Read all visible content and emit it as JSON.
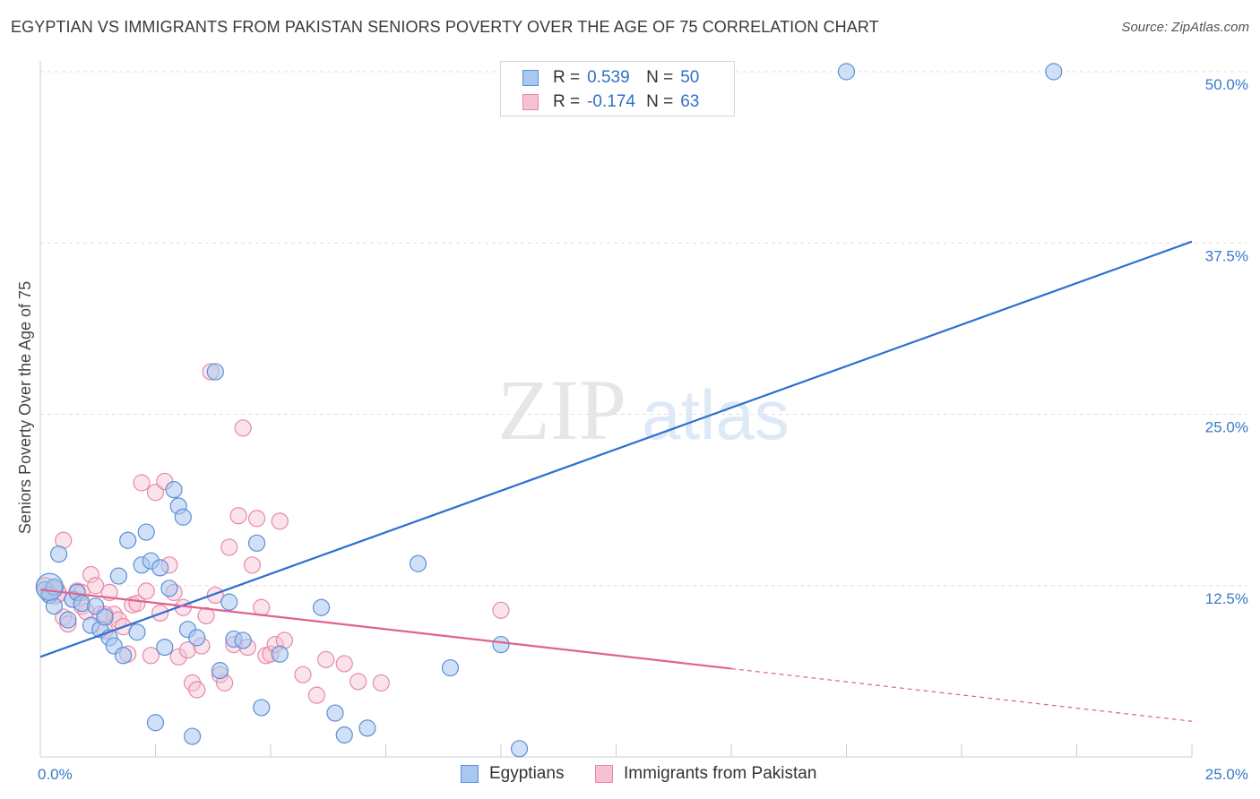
{
  "title": "EGYPTIAN VS IMMIGRANTS FROM PAKISTAN SENIORS POVERTY OVER THE AGE OF 75 CORRELATION CHART",
  "source": "Source: ZipAtlas.com",
  "watermark": {
    "zip": "ZIP",
    "atlas": "atlas"
  },
  "colors": {
    "blue_fill": "#a9c8f0",
    "blue_stroke": "#5b8fd6",
    "blue_line": "#2e6fcf",
    "pink_fill": "#f7c1d3",
    "pink_stroke": "#e68aa8",
    "pink_line": "#e0628e",
    "axis_text": "#3a78c9",
    "grid": "#dddddd"
  },
  "legend": {
    "rows": [
      {
        "r_label": "R =",
        "r_value": "0.539",
        "n_label": "N =",
        "n_value": "50"
      },
      {
        "r_label": "R =",
        "r_value": "-0.174",
        "n_label": "N =",
        "n_value": "63"
      }
    ]
  },
  "bottom_legend": {
    "egyptians": "Egyptians",
    "pakistan": "Immigrants from Pakistan"
  },
  "chart_data": {
    "type": "scatter",
    "title": "EGYPTIAN VS IMMIGRANTS FROM PAKISTAN SENIORS POVERTY OVER THE AGE OF 75 CORRELATION CHART",
    "xlabel": "",
    "ylabel": "Seniors Poverty Over the Age of 75",
    "xlim": [
      0,
      25
    ],
    "ylim": [
      0,
      50
    ],
    "x_tick_labels": [
      "0.0%",
      "25.0%"
    ],
    "y_ticks": [
      12.5,
      25.0,
      37.5,
      50.0
    ],
    "y_tick_labels": [
      "12.5%",
      "25.0%",
      "37.5%",
      "50.0%"
    ],
    "grid": true,
    "series": [
      {
        "name": "Egyptians",
        "r": 0.539,
        "n": 50,
        "trend": {
          "x": [
            0,
            25
          ],
          "y": [
            7.3,
            37.6
          ],
          "dashed_from": null
        },
        "points": [
          [
            0.1,
            12.2
          ],
          [
            0.2,
            11.8
          ],
          [
            0.3,
            12.4
          ],
          [
            0.3,
            11.0
          ],
          [
            0.4,
            14.8
          ],
          [
            0.6,
            10.0
          ],
          [
            0.7,
            11.5
          ],
          [
            0.8,
            12.0
          ],
          [
            0.9,
            11.2
          ],
          [
            1.1,
            9.6
          ],
          [
            1.2,
            11.0
          ],
          [
            1.3,
            9.3
          ],
          [
            1.4,
            10.2
          ],
          [
            1.5,
            8.7
          ],
          [
            1.6,
            8.1
          ],
          [
            1.7,
            13.2
          ],
          [
            1.8,
            7.4
          ],
          [
            1.9,
            15.8
          ],
          [
            2.1,
            9.1
          ],
          [
            2.2,
            14.0
          ],
          [
            2.3,
            16.4
          ],
          [
            2.4,
            14.3
          ],
          [
            2.5,
            2.5
          ],
          [
            2.6,
            13.8
          ],
          [
            2.7,
            8.0
          ],
          [
            2.8,
            12.3
          ],
          [
            2.9,
            19.5
          ],
          [
            3.0,
            18.3
          ],
          [
            3.1,
            17.5
          ],
          [
            3.2,
            9.3
          ],
          [
            3.3,
            1.5
          ],
          [
            3.4,
            8.7
          ],
          [
            3.9,
            6.3
          ],
          [
            3.8,
            28.1
          ],
          [
            4.1,
            11.3
          ],
          [
            4.2,
            8.6
          ],
          [
            4.4,
            8.5
          ],
          [
            4.7,
            15.6
          ],
          [
            4.8,
            3.6
          ],
          [
            5.2,
            7.5
          ],
          [
            6.1,
            10.9
          ],
          [
            6.4,
            3.2
          ],
          [
            6.6,
            1.6
          ],
          [
            7.1,
            2.1
          ],
          [
            8.2,
            14.1
          ],
          [
            8.9,
            6.5
          ],
          [
            10.0,
            8.2
          ],
          [
            10.4,
            0.6
          ],
          [
            17.5,
            50.0
          ],
          [
            22.0,
            50.0
          ]
        ]
      },
      {
        "name": "Immigrants from Pakistan",
        "r": -0.174,
        "n": 63,
        "trend": {
          "x": [
            0,
            25
          ],
          "y": [
            12.2,
            2.6
          ],
          "dashed_from": 15.0
        },
        "points": [
          [
            0.1,
            12.5
          ],
          [
            0.2,
            11.8
          ],
          [
            0.3,
            12.3
          ],
          [
            0.4,
            11.9
          ],
          [
            0.5,
            10.2
          ],
          [
            0.5,
            15.8
          ],
          [
            0.6,
            9.7
          ],
          [
            0.7,
            11.5
          ],
          [
            0.8,
            12.1
          ],
          [
            0.9,
            11.0
          ],
          [
            1.0,
            10.6
          ],
          [
            1.1,
            13.3
          ],
          [
            1.2,
            12.5
          ],
          [
            1.3,
            10.4
          ],
          [
            1.4,
            9.2
          ],
          [
            1.5,
            12.0
          ],
          [
            1.6,
            10.4
          ],
          [
            1.7,
            10.0
          ],
          [
            1.8,
            9.5
          ],
          [
            1.9,
            7.5
          ],
          [
            2.0,
            11.1
          ],
          [
            2.1,
            11.2
          ],
          [
            2.2,
            20.0
          ],
          [
            2.3,
            12.1
          ],
          [
            2.4,
            7.4
          ],
          [
            2.5,
            19.3
          ],
          [
            2.6,
            10.5
          ],
          [
            2.7,
            20.1
          ],
          [
            2.8,
            14.0
          ],
          [
            2.9,
            12.0
          ],
          [
            3.0,
            7.3
          ],
          [
            3.1,
            10.9
          ],
          [
            3.2,
            7.8
          ],
          [
            3.3,
            5.4
          ],
          [
            3.4,
            4.9
          ],
          [
            3.5,
            8.1
          ],
          [
            3.6,
            10.3
          ],
          [
            3.7,
            28.1
          ],
          [
            3.8,
            11.8
          ],
          [
            3.9,
            6.0
          ],
          [
            4.0,
            5.4
          ],
          [
            4.1,
            15.3
          ],
          [
            4.2,
            8.2
          ],
          [
            4.3,
            17.6
          ],
          [
            4.4,
            24.0
          ],
          [
            4.5,
            8.0
          ],
          [
            4.6,
            14.0
          ],
          [
            4.7,
            17.4
          ],
          [
            4.8,
            10.9
          ],
          [
            4.9,
            7.4
          ],
          [
            5.0,
            7.5
          ],
          [
            5.1,
            8.2
          ],
          [
            5.2,
            17.2
          ],
          [
            5.3,
            8.5
          ],
          [
            5.7,
            6.0
          ],
          [
            6.0,
            4.5
          ],
          [
            6.2,
            7.1
          ],
          [
            6.6,
            6.8
          ],
          [
            6.9,
            5.5
          ],
          [
            7.4,
            5.4
          ],
          [
            10.0,
            10.7
          ],
          [
            1.4,
            10.4
          ],
          [
            0.9,
            12.0
          ]
        ]
      }
    ]
  }
}
